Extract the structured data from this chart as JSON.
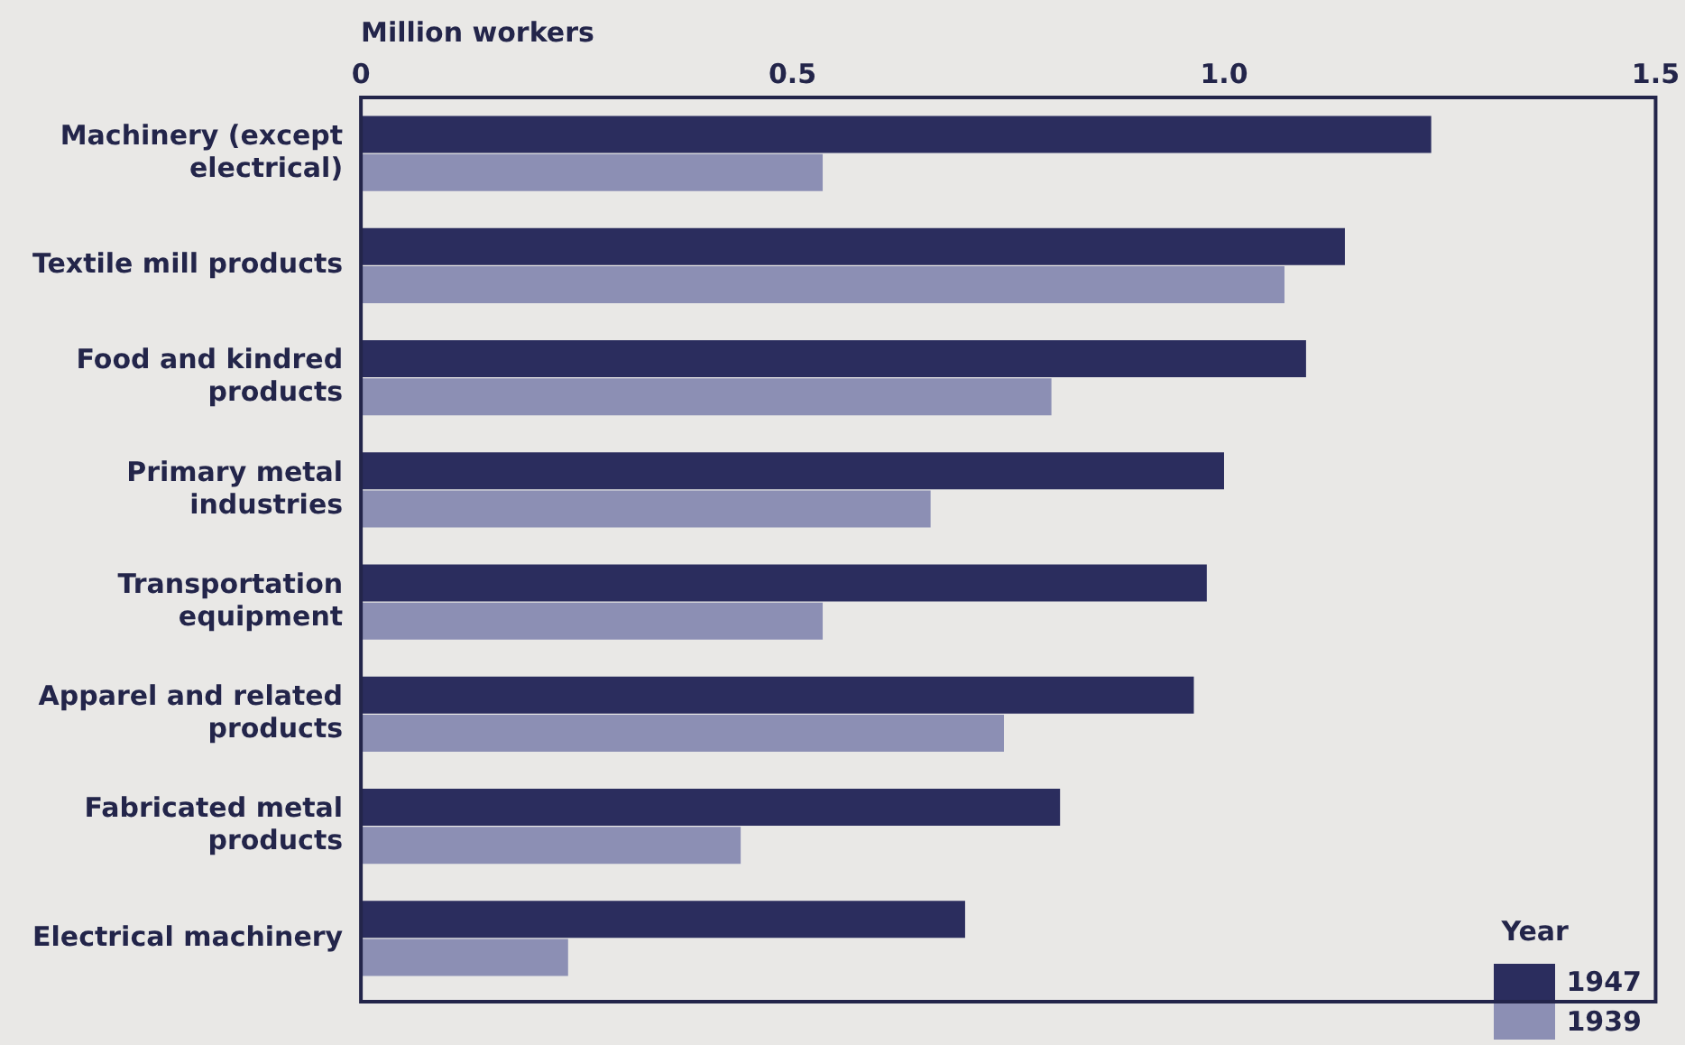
{
  "chart_data": {
    "type": "bar",
    "orientation": "horizontal",
    "xlabel": "Million workers",
    "legend_title": "Year",
    "legend": "bottom right",
    "categories": [
      "Machinery (except electrical)",
      "Textile mill products",
      "Food and kindred products",
      "Primary metal industries",
      "Transportation equipment",
      "Apparel and related products",
      "Fabricated metal products",
      "Electrical machinery"
    ],
    "series": [
      {
        "name": "1947",
        "color": "#2b2d5e",
        "values": [
          1.24,
          1.14,
          1.095,
          1.0,
          0.98,
          0.965,
          0.81,
          0.7
        ]
      },
      {
        "name": "1939",
        "color": "#8c8fb4",
        "values": [
          0.535,
          1.07,
          0.8,
          0.66,
          0.535,
          0.745,
          0.44,
          0.24
        ]
      }
    ],
    "xlim": [
      0,
      1.5
    ],
    "xticks": [
      0,
      0.5,
      {
        "value": 1,
        "label": "1.0"
      },
      1.5
    ],
    "grid": false
  }
}
